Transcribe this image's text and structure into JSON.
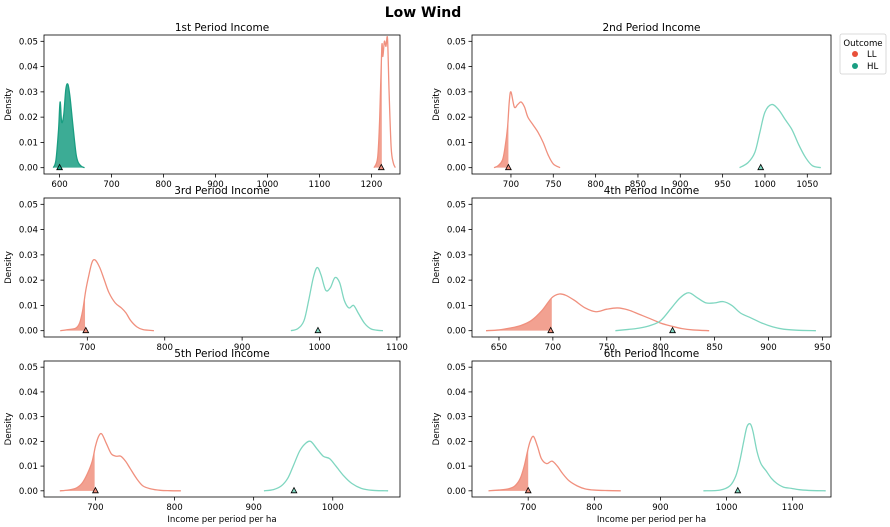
{
  "figure": {
    "suptitle": "Low Wind",
    "legend": {
      "title": "Outcome",
      "placement": "outside-top-right",
      "items": [
        {
          "label": "LL",
          "color": "#e8503a"
        },
        {
          "label": "HL",
          "color": "#1a9e82"
        }
      ]
    }
  },
  "chart_data": [
    {
      "type": "area",
      "title": "1st Period Income",
      "xlabel": "",
      "ylabel": "Density",
      "xlim": [
        570,
        1255
      ],
      "ylim": [
        -0.0025,
        0.0525
      ],
      "xticks": [
        600,
        700,
        800,
        900,
        1000,
        1100,
        1200
      ],
      "yticks": [
        0.0,
        0.01,
        0.02,
        0.03,
        0.04,
        0.05
      ],
      "series": [
        {
          "name": "LL",
          "role": "curve",
          "color": "#f0907e",
          "fill_below": 1220,
          "x": [
            1205,
            1212,
            1216,
            1220,
            1222,
            1225,
            1228,
            1231,
            1234,
            1238,
            1242,
            1246
          ],
          "y": [
            0.0,
            0.004,
            0.02,
            0.048,
            0.044,
            0.05,
            0.048,
            0.051,
            0.03,
            0.008,
            0.002,
            0.0
          ],
          "marker_x": 1219
        },
        {
          "name": "HL",
          "role": "curve",
          "color": "#1a9e82",
          "fill_below": 660,
          "x": [
            588,
            593,
            598,
            601,
            604,
            608,
            612,
            616,
            620,
            624,
            628,
            632,
            636,
            642,
            648
          ],
          "y": [
            0.0,
            0.003,
            0.015,
            0.026,
            0.018,
            0.021,
            0.031,
            0.033,
            0.028,
            0.02,
            0.012,
            0.005,
            0.002,
            0.0005,
            0.0
          ],
          "marker_x": 600
        }
      ]
    },
    {
      "type": "area",
      "title": "2nd Period Income",
      "xlabel": "",
      "ylabel": "Density",
      "xlim": [
        654,
        1078
      ],
      "ylim": [
        -0.0025,
        0.0525
      ],
      "xticks": [
        700,
        750,
        800,
        850,
        900,
        950,
        1000,
        1050
      ],
      "yticks": [
        0.0,
        0.01,
        0.02,
        0.03,
        0.04,
        0.05
      ],
      "series": [
        {
          "name": "LL",
          "role": "curve",
          "color": "#f0907e",
          "fill_below": 697,
          "x": [
            680,
            685,
            690,
            693,
            696,
            698,
            700,
            704,
            708,
            712,
            716,
            720,
            726,
            732,
            738,
            744,
            750,
            758
          ],
          "y": [
            0.0,
            0.0008,
            0.003,
            0.008,
            0.016,
            0.026,
            0.03,
            0.024,
            0.025,
            0.026,
            0.024,
            0.02,
            0.017,
            0.014,
            0.01,
            0.005,
            0.0015,
            0.0
          ],
          "marker_x": 697
        },
        {
          "name": "HL",
          "role": "curve",
          "color": "#7fd6c0",
          "fill_below": null,
          "x": [
            970,
            980,
            988,
            994,
            1000,
            1008,
            1016,
            1024,
            1032,
            1040,
            1048,
            1056,
            1066
          ],
          "y": [
            0.0,
            0.002,
            0.006,
            0.014,
            0.022,
            0.025,
            0.023,
            0.019,
            0.015,
            0.009,
            0.004,
            0.0008,
            0.0
          ],
          "marker_x": 995
        }
      ]
    },
    {
      "type": "area",
      "title": "3rd Period Income",
      "xlabel": "",
      "ylabel": "Density",
      "xlim": [
        644,
        1104
      ],
      "ylim": [
        -0.0025,
        0.0525
      ],
      "xticks": [
        700,
        800,
        900,
        1000,
        1100
      ],
      "yticks": [
        0.0,
        0.01,
        0.02,
        0.03,
        0.04,
        0.05
      ],
      "series": [
        {
          "name": "LL",
          "role": "curve",
          "color": "#f0907e",
          "fill_below": 697,
          "x": [
            665,
            675,
            685,
            690,
            694,
            698,
            702,
            706,
            710,
            716,
            722,
            728,
            736,
            744,
            750,
            756,
            764,
            772,
            786
          ],
          "y": [
            0.0,
            0.0004,
            0.001,
            0.003,
            0.008,
            0.016,
            0.022,
            0.027,
            0.028,
            0.025,
            0.02,
            0.015,
            0.011,
            0.009,
            0.007,
            0.004,
            0.0015,
            0.0004,
            0.0
          ],
          "marker_x": 698
        },
        {
          "name": "HL",
          "role": "curve",
          "color": "#7fd6c0",
          "fill_below": null,
          "x": [
            963,
            972,
            980,
            986,
            992,
            997,
            1002,
            1008,
            1014,
            1020,
            1026,
            1032,
            1038,
            1044,
            1050,
            1058,
            1066,
            1074,
            1082
          ],
          "y": [
            0.0,
            0.0008,
            0.004,
            0.012,
            0.021,
            0.025,
            0.022,
            0.016,
            0.017,
            0.021,
            0.019,
            0.012,
            0.009,
            0.01,
            0.007,
            0.003,
            0.0008,
            0.0002,
            0.0
          ],
          "marker_x": 998
        }
      ]
    },
    {
      "type": "area",
      "title": "4th Period Income",
      "xlabel": "",
      "ylabel": "Density",
      "xlim": [
        625,
        958
      ],
      "ylim": [
        -0.0025,
        0.0525
      ],
      "xticks": [
        650,
        700,
        750,
        800,
        850,
        900,
        950
      ],
      "yticks": [
        0.0,
        0.01,
        0.02,
        0.03,
        0.04,
        0.05
      ],
      "series": [
        {
          "name": "LL",
          "role": "curve",
          "color": "#f0907e",
          "fill_below": 699,
          "x": [
            638,
            650,
            660,
            670,
            680,
            690,
            699,
            706,
            712,
            720,
            730,
            740,
            750,
            760,
            770,
            780,
            790,
            800,
            810,
            820,
            830,
            845
          ],
          "y": [
            0.0,
            0.0003,
            0.001,
            0.002,
            0.004,
            0.008,
            0.013,
            0.0145,
            0.014,
            0.012,
            0.009,
            0.0075,
            0.0085,
            0.009,
            0.0082,
            0.0065,
            0.0048,
            0.003,
            0.0018,
            0.0008,
            0.0003,
            0.0
          ],
          "marker_x": 698
        },
        {
          "name": "HL",
          "role": "curve",
          "color": "#7fd6c0",
          "fill_below": null,
          "x": [
            758,
            770,
            780,
            790,
            800,
            810,
            818,
            826,
            834,
            842,
            850,
            858,
            866,
            874,
            884,
            894,
            904,
            914,
            926,
            944
          ],
          "y": [
            0.0,
            0.0005,
            0.001,
            0.002,
            0.004,
            0.009,
            0.013,
            0.015,
            0.013,
            0.011,
            0.011,
            0.0115,
            0.01,
            0.007,
            0.005,
            0.003,
            0.0015,
            0.0006,
            0.0002,
            0.0
          ],
          "marker_x": 811
        }
      ]
    },
    {
      "type": "area",
      "title": "5th Period Income",
      "xlabel": "Income per period per ha",
      "ylabel": "Density",
      "xlim": [
        635,
        1085
      ],
      "ylim": [
        -0.0025,
        0.0525
      ],
      "xticks": [
        700,
        800,
        900,
        1000
      ],
      "yticks": [
        0.0,
        0.01,
        0.02,
        0.03,
        0.04,
        0.05
      ],
      "series": [
        {
          "name": "LL",
          "role": "curve",
          "color": "#f0907e",
          "fill_below": 699,
          "x": [
            655,
            665,
            675,
            683,
            690,
            696,
            700,
            704,
            708,
            714,
            720,
            726,
            732,
            738,
            744,
            752,
            760,
            770,
            782,
            794,
            808
          ],
          "y": [
            0.0,
            0.0003,
            0.001,
            0.003,
            0.007,
            0.012,
            0.018,
            0.022,
            0.023,
            0.019,
            0.015,
            0.014,
            0.014,
            0.012,
            0.009,
            0.005,
            0.002,
            0.0008,
            0.0002,
            5e-05,
            0.0
          ],
          "marker_x": 700
        },
        {
          "name": "HL",
          "role": "curve",
          "color": "#7fd6c0",
          "fill_below": null,
          "x": [
            913,
            925,
            935,
            943,
            950,
            958,
            965,
            972,
            980,
            988,
            996,
            1004,
            1014,
            1024,
            1036,
            1050,
            1070
          ],
          "y": [
            0.0,
            0.0005,
            0.002,
            0.005,
            0.01,
            0.016,
            0.019,
            0.02,
            0.017,
            0.014,
            0.013,
            0.01,
            0.006,
            0.003,
            0.001,
            0.0002,
            0.0
          ],
          "marker_x": 951
        }
      ]
    },
    {
      "type": "area",
      "title": "6th Period Income",
      "xlabel": "Income per period per ha",
      "ylabel": "Density",
      "xlim": [
        615,
        1158
      ],
      "ylim": [
        -0.0025,
        0.0525
      ],
      "xticks": [
        700,
        800,
        900,
        1000,
        1100
      ],
      "yticks": [
        0.0,
        0.01,
        0.02,
        0.03,
        0.04,
        0.05
      ],
      "series": [
        {
          "name": "LL",
          "role": "curve",
          "color": "#f0907e",
          "fill_below": 700,
          "x": [
            640,
            655,
            670,
            680,
            688,
            694,
            699,
            703,
            708,
            714,
            720,
            728,
            736,
            744,
            752,
            762,
            774,
            786,
            800,
            820,
            840
          ],
          "y": [
            0.0,
            0.0003,
            0.0008,
            0.002,
            0.005,
            0.01,
            0.016,
            0.02,
            0.022,
            0.018,
            0.013,
            0.011,
            0.012,
            0.01,
            0.007,
            0.004,
            0.002,
            0.0008,
            0.0003,
            0.0001,
            0.0
          ],
          "marker_x": 700
        },
        {
          "name": "HL",
          "role": "curve",
          "color": "#7fd6c0",
          "fill_below": null,
          "x": [
            965,
            990,
            1005,
            1014,
            1020,
            1026,
            1031,
            1036,
            1040,
            1046,
            1052,
            1060,
            1068,
            1076,
            1086,
            1098,
            1112,
            1130,
            1150
          ],
          "y": [
            0.0,
            0.0003,
            0.002,
            0.006,
            0.012,
            0.02,
            0.026,
            0.027,
            0.024,
            0.016,
            0.011,
            0.008,
            0.005,
            0.003,
            0.0015,
            0.001,
            0.0004,
            0.0001,
            0.0
          ],
          "marker_x": 1017
        }
      ]
    }
  ]
}
